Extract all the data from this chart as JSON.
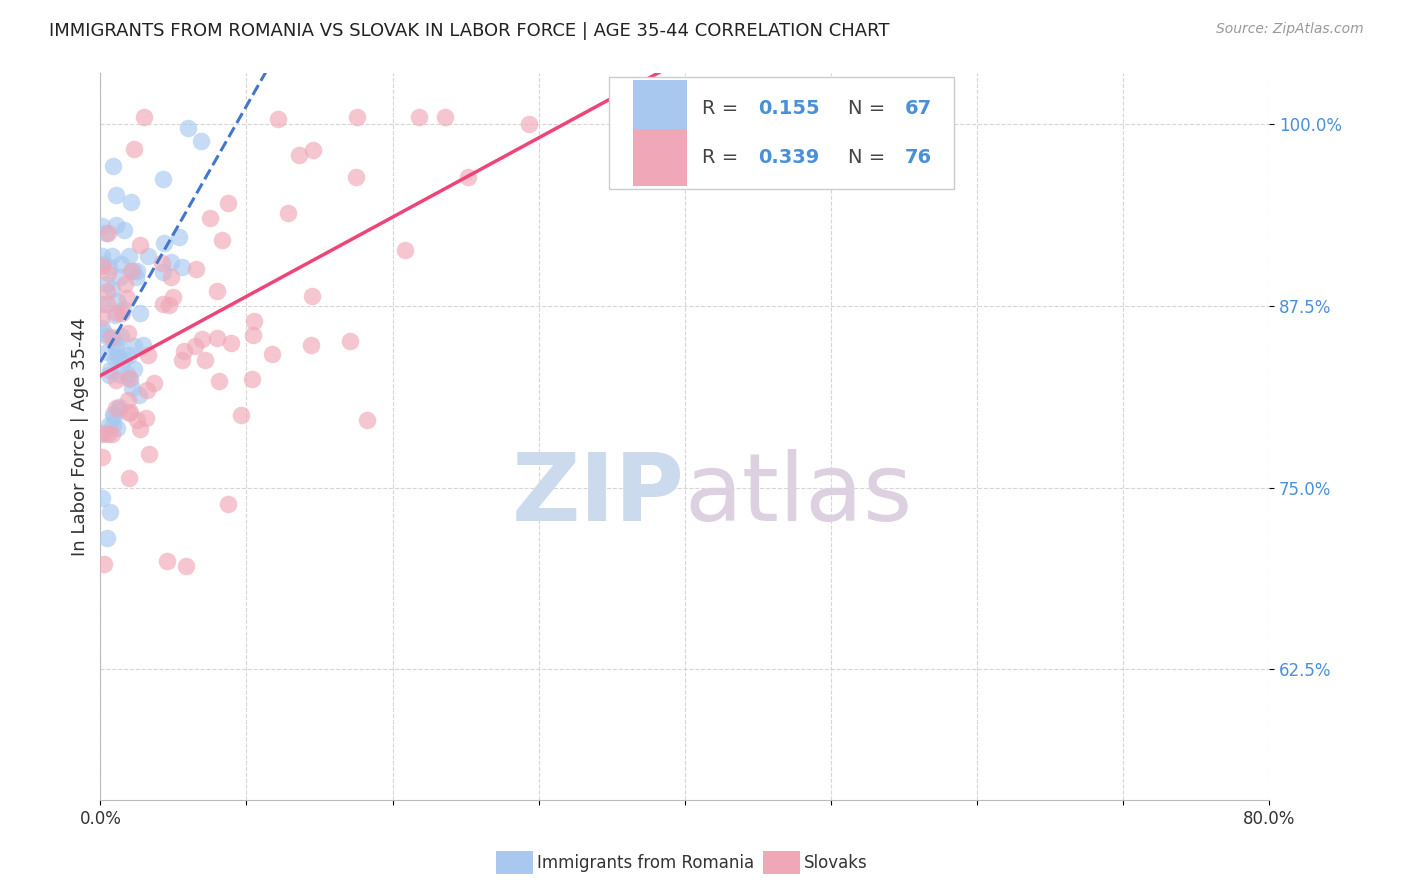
{
  "title": "IMMIGRANTS FROM ROMANIA VS SLOVAK IN LABOR FORCE | AGE 35-44 CORRELATION CHART",
  "source": "Source: ZipAtlas.com",
  "ylabel": "In Labor Force | Age 35-44",
  "x_min": 0.0,
  "x_max": 0.8,
  "y_min": 0.535,
  "y_max": 1.035,
  "y_ticks": [
    0.625,
    0.75,
    0.875,
    1.0
  ],
  "y_tick_labels": [
    "62.5%",
    "75.0%",
    "87.5%",
    "100.0%"
  ],
  "grid_color": "#cccccc",
  "background_color": "#ffffff",
  "romania_color": "#a8c8f0",
  "slovak_color": "#f0a8b8",
  "romania_line_color": "#4477cc",
  "slovak_line_color": "#ee4477",
  "romania_R": 0.155,
  "slovakia_R": 0.339,
  "romania_N": 67,
  "slovak_N": 76,
  "romania_label": "Immigrants from Romania",
  "slovak_label": "Slovaks",
  "watermark_zip": "ZIP",
  "watermark_atlas": "atlas",
  "watermark_color_zip": "#c8d8ee",
  "watermark_color_atlas": "#d8c8dc",
  "tick_color": "#4a90d9",
  "text_color": "#333333"
}
